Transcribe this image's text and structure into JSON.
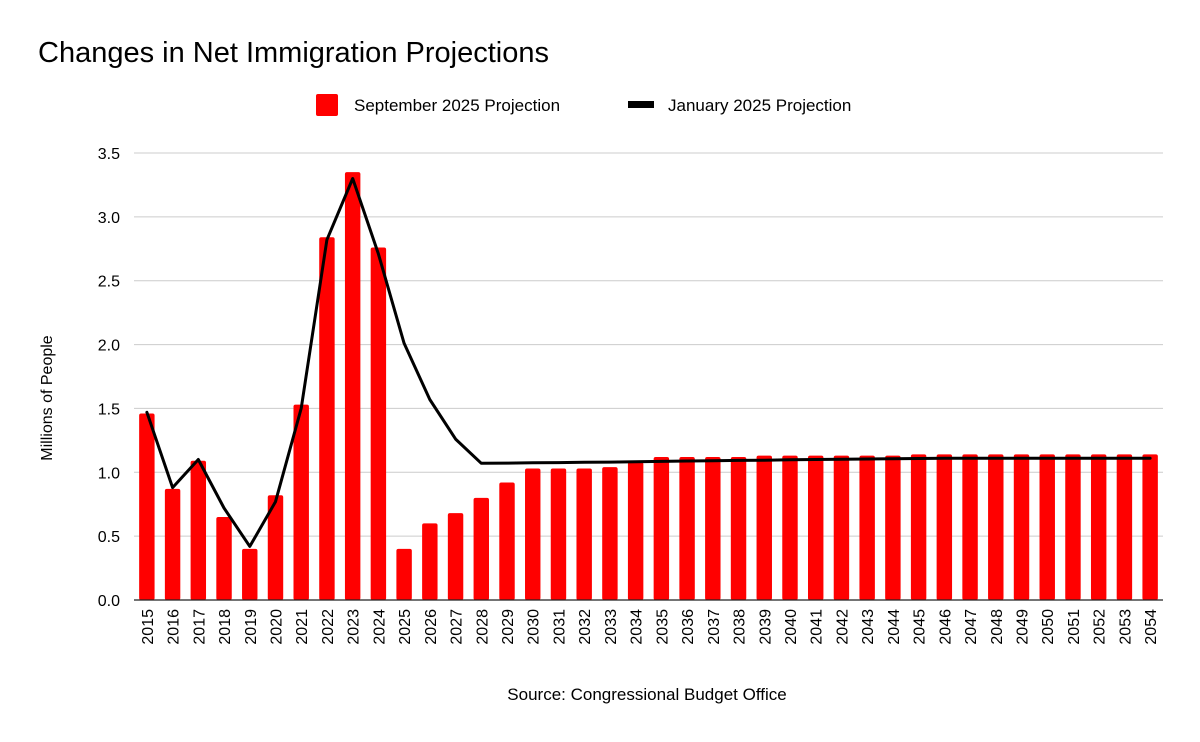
{
  "chart_data": {
    "type": "bar",
    "title": "Changes in Net Immigration Projections",
    "xlabel": "",
    "ylabel": "Millions of People",
    "source": "Source: Congressional Budget Office",
    "ylim": [
      0,
      3.5
    ],
    "yticks": [
      "0.0",
      "0.5",
      "1.0",
      "1.5",
      "2.0",
      "2.5",
      "3.0",
      "3.5"
    ],
    "grid": true,
    "legend_position": "top-center",
    "categories": [
      "2015",
      "2016",
      "2017",
      "2018",
      "2019",
      "2020",
      "2021",
      "2022",
      "2023",
      "2024",
      "2025",
      "2026",
      "2027",
      "2028",
      "2029",
      "2030",
      "2031",
      "2032",
      "2033",
      "2034",
      "2035",
      "2036",
      "2037",
      "2038",
      "2039",
      "2040",
      "2041",
      "2042",
      "2043",
      "2044",
      "2045",
      "2046",
      "2047",
      "2048",
      "2049",
      "2050",
      "2051",
      "2052",
      "2053",
      "2054"
    ],
    "series": [
      {
        "name": "September 2025 Projection",
        "kind": "bar",
        "color": "#ff0000",
        "values": [
          1.46,
          0.87,
          1.09,
          0.65,
          0.4,
          0.82,
          1.53,
          2.84,
          3.35,
          2.76,
          0.4,
          0.6,
          0.68,
          0.8,
          0.92,
          1.03,
          1.03,
          1.03,
          1.04,
          1.08,
          1.12,
          1.12,
          1.12,
          1.12,
          1.13,
          1.13,
          1.13,
          1.13,
          1.13,
          1.13,
          1.14,
          1.14,
          1.14,
          1.14,
          1.14,
          1.14,
          1.14,
          1.14,
          1.14,
          1.14
        ]
      },
      {
        "name": "January 2025 Projection",
        "kind": "line",
        "color": "#000000",
        "values": [
          1.47,
          0.88,
          1.1,
          0.72,
          0.42,
          0.77,
          1.5,
          2.82,
          3.3,
          2.71,
          2.01,
          1.57,
          1.26,
          1.07,
          1.072,
          1.074,
          1.076,
          1.078,
          1.08,
          1.083,
          1.085,
          1.088,
          1.09,
          1.093,
          1.095,
          1.098,
          1.1,
          1.102,
          1.104,
          1.106,
          1.108,
          1.11,
          1.11,
          1.11,
          1.11,
          1.11,
          1.11,
          1.11,
          1.11,
          1.11
        ]
      }
    ]
  }
}
